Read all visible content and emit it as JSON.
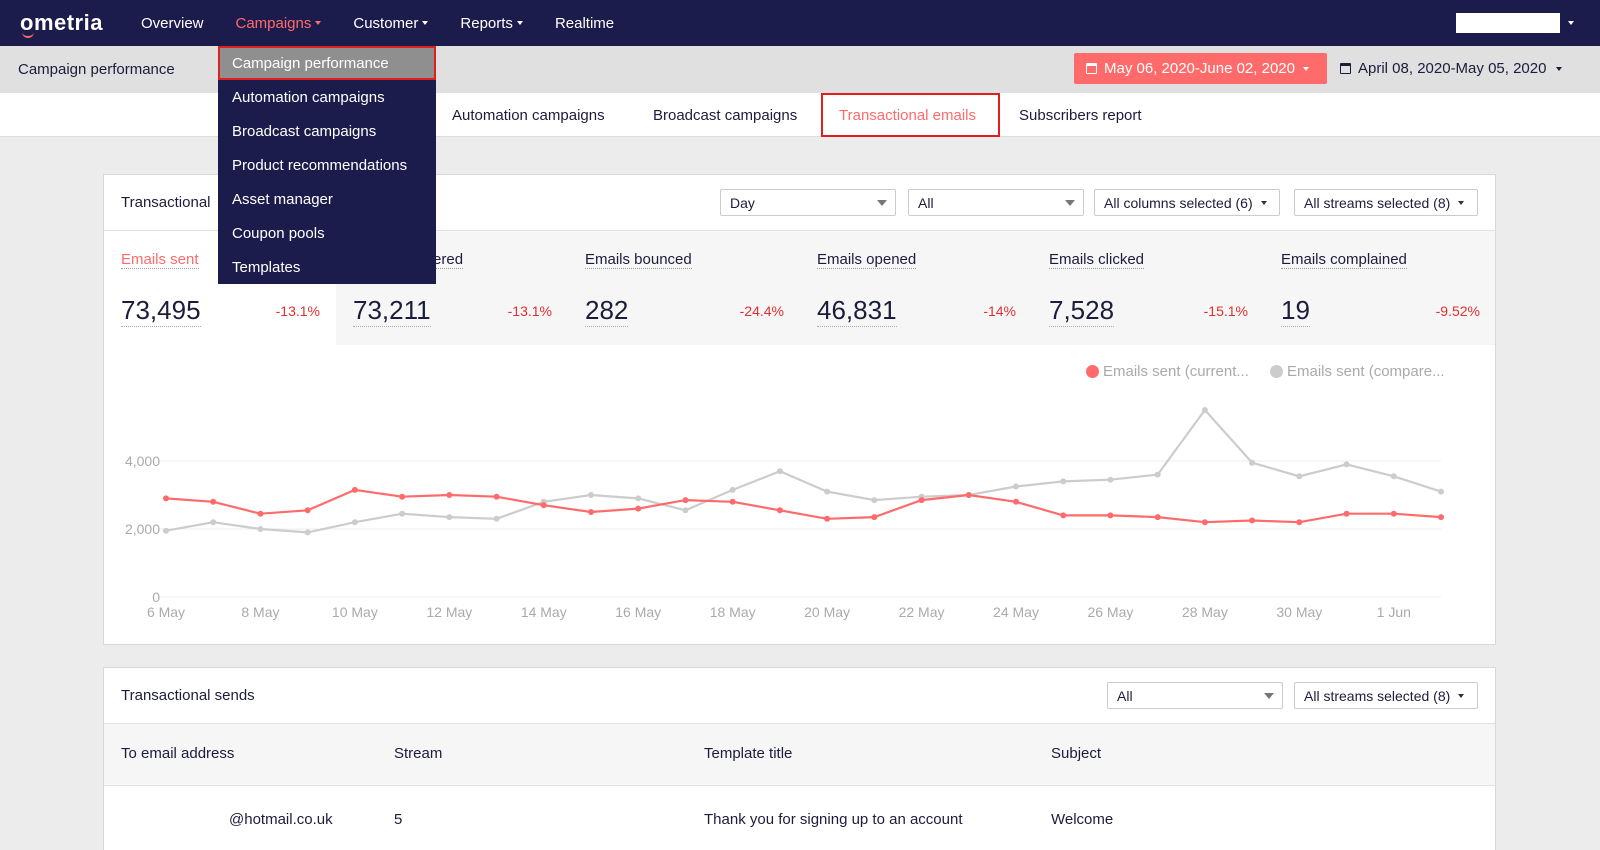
{
  "nav": {
    "logo": "ometria",
    "items": [
      {
        "label": "Overview",
        "active": false,
        "caret": false
      },
      {
        "label": "Campaigns",
        "active": true,
        "caret": true
      },
      {
        "label": "Customer",
        "active": false,
        "caret": true
      },
      {
        "label": "Reports",
        "active": false,
        "caret": true
      },
      {
        "label": "Realtime",
        "active": false,
        "caret": false
      }
    ]
  },
  "subheader": {
    "title": "Campaign performance",
    "date_current": "May 06, 2020-June 02, 2020",
    "date_compare": "April 08, 2020-May 05, 2020"
  },
  "tabs": [
    {
      "label": "Automation campaigns"
    },
    {
      "label": "Broadcast campaigns"
    },
    {
      "label": "Transactional emails",
      "active": true
    },
    {
      "label": "Subscribers report"
    }
  ],
  "dropdown": {
    "items": [
      "Campaign performance",
      "Automation campaigns",
      "Broadcast campaigns",
      "Product recommendations",
      "Asset manager",
      "Coupon pools",
      "Templates"
    ]
  },
  "overview_panel": {
    "title": "Transactional",
    "filters": {
      "interval": "Day",
      "segment": "All",
      "columns": "All columns selected (6)",
      "streams": "All streams selected (8)"
    },
    "metrics": [
      {
        "label": "Emails sent",
        "value": "73,495",
        "change": "-13.1%",
        "selected": true
      },
      {
        "label": "Emails delivered",
        "value": "73,211",
        "change": "-13.1%"
      },
      {
        "label": "Emails bounced",
        "value": "282",
        "change": "-24.4%"
      },
      {
        "label": "Emails opened",
        "value": "46,831",
        "change": "-14%"
      },
      {
        "label": "Emails clicked",
        "value": "7,528",
        "change": "-15.1%"
      },
      {
        "label": "Emails complained",
        "value": "19",
        "change": "-9.52%"
      }
    ]
  },
  "chart_data": {
    "type": "line",
    "title": "",
    "xlabel": "",
    "ylabel": "",
    "ylim": [
      0,
      4000
    ],
    "yticks": [
      "0",
      "2,000",
      "4,000"
    ],
    "x": [
      "6 May",
      "7 May",
      "8 May",
      "9 May",
      "10 May",
      "11 May",
      "12 May",
      "13 May",
      "14 May",
      "15 May",
      "16 May",
      "17 May",
      "18 May",
      "19 May",
      "20 May",
      "21 May",
      "22 May",
      "23 May",
      "24 May",
      "25 May",
      "26 May",
      "27 May",
      "28 May",
      "29 May",
      "30 May",
      "31 May",
      "1 Jun",
      "2 Jun"
    ],
    "xtick_labels": [
      "6 May",
      "8 May",
      "10 May",
      "12 May",
      "14 May",
      "16 May",
      "18 May",
      "20 May",
      "22 May",
      "24 May",
      "26 May",
      "28 May",
      "30 May",
      "1 Jun"
    ],
    "series": [
      {
        "name": "Emails sent (current...",
        "color": "#ff6b6b",
        "values": [
          2900,
          2800,
          2450,
          2550,
          3150,
          2950,
          3000,
          2950,
          2700,
          2500,
          2600,
          2850,
          2800,
          2550,
          2300,
          2350,
          2850,
          3000,
          2800,
          2400,
          2400,
          2350,
          2200,
          2250,
          2200,
          2450,
          2450,
          2350
        ]
      },
      {
        "name": "Emails sent (compare...",
        "color": "#cccccc",
        "values": [
          1950,
          2200,
          2000,
          1900,
          2200,
          2450,
          2350,
          2300,
          2800,
          3000,
          2900,
          2550,
          3150,
          3700,
          3100,
          2850,
          2950,
          3000,
          3250,
          3400,
          3450,
          3600,
          5500,
          3950,
          3550,
          3900,
          3550,
          3100
        ]
      }
    ],
    "legend_position": "top-right",
    "grid": true
  },
  "sends_panel": {
    "title": "Transactional sends",
    "filter_segment": "All",
    "filter_streams": "All streams selected (8)",
    "columns": [
      "To email address",
      "Stream",
      "Template title",
      "Subject"
    ],
    "rows": [
      {
        "email": "@hotmail.co.uk",
        "stream": "5",
        "template": "Thank you for signing up to an account",
        "subject": "Welcome"
      }
    ]
  }
}
